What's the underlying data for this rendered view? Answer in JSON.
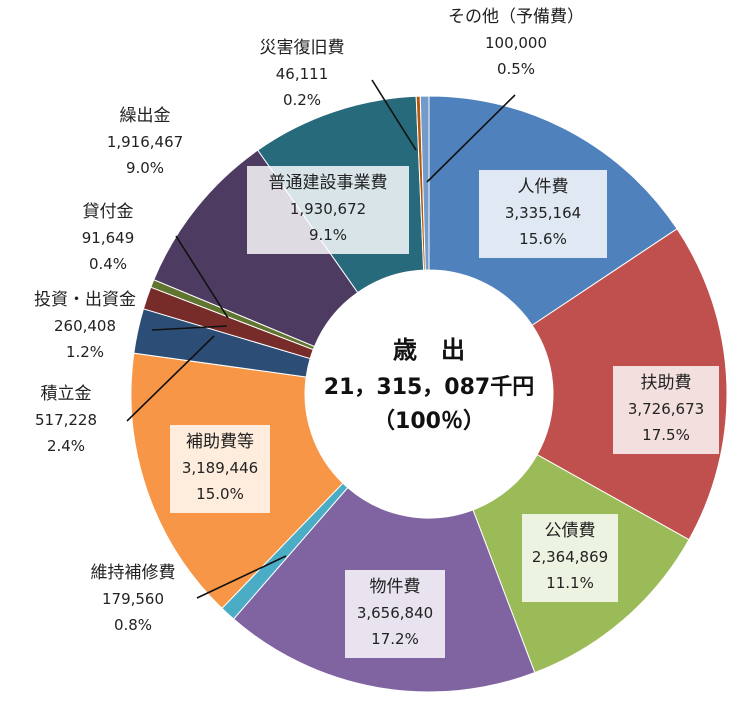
{
  "chart_data": {
    "type": "pie",
    "center_text": {
      "line1": "歳　出",
      "line2": "21，315，087千円",
      "line3": "（100％）"
    },
    "slices": [
      {
        "name": "人件費",
        "value": 3335164,
        "value_label": "3,335,164",
        "percent_label": "15.6%",
        "color": "#4f81bd"
      },
      {
        "name": "扶助費",
        "value": 3726673,
        "value_label": "3,726,673",
        "percent_label": "17.5%",
        "color": "#c0504d"
      },
      {
        "name": "公債費",
        "value": 2364869,
        "value_label": "2,364,869",
        "percent_label": "11.1%",
        "color": "#9bbb59"
      },
      {
        "name": "物件費",
        "value": 3656840,
        "value_label": "3,656,840",
        "percent_label": "17.2%",
        "color": "#8064a2"
      },
      {
        "name": "維持補修費",
        "value": 179560,
        "value_label": "179,560",
        "percent_label": "0.8%",
        "color": "#4bacc6"
      },
      {
        "name": "補助費等",
        "value": 3189446,
        "value_label": "3,189,446",
        "percent_label": "15.0%",
        "color": "#f79646"
      },
      {
        "name": "積立金",
        "value": 517228,
        "value_label": "517,228",
        "percent_label": "2.4%",
        "color": "#2c4d75"
      },
      {
        "name": "投資・出資金",
        "value": 260408,
        "value_label": "260,408",
        "percent_label": "1.2%",
        "color": "#772c2a"
      },
      {
        "name": "貸付金",
        "value": 91649,
        "value_label": "91,649",
        "percent_label": "0.4%",
        "color": "#5f7530"
      },
      {
        "name": "繰出金",
        "value": 1916467,
        "value_label": "1,916,467",
        "percent_label": "9.0%",
        "color": "#4d3b62"
      },
      {
        "name": "普通建設事業費",
        "value": 1930672,
        "value_label": "1,930,672",
        "percent_label": "9.1%",
        "color": "#276a7c"
      },
      {
        "name": "災害復旧費",
        "value": 46111,
        "value_label": "46,111",
        "percent_label": "0.2%",
        "color": "#b65708"
      },
      {
        "name": "その他（予備費）",
        "value": 100000,
        "value_label": "100,000",
        "percent_label": "0.5%",
        "color": "#729aca"
      }
    ]
  }
}
